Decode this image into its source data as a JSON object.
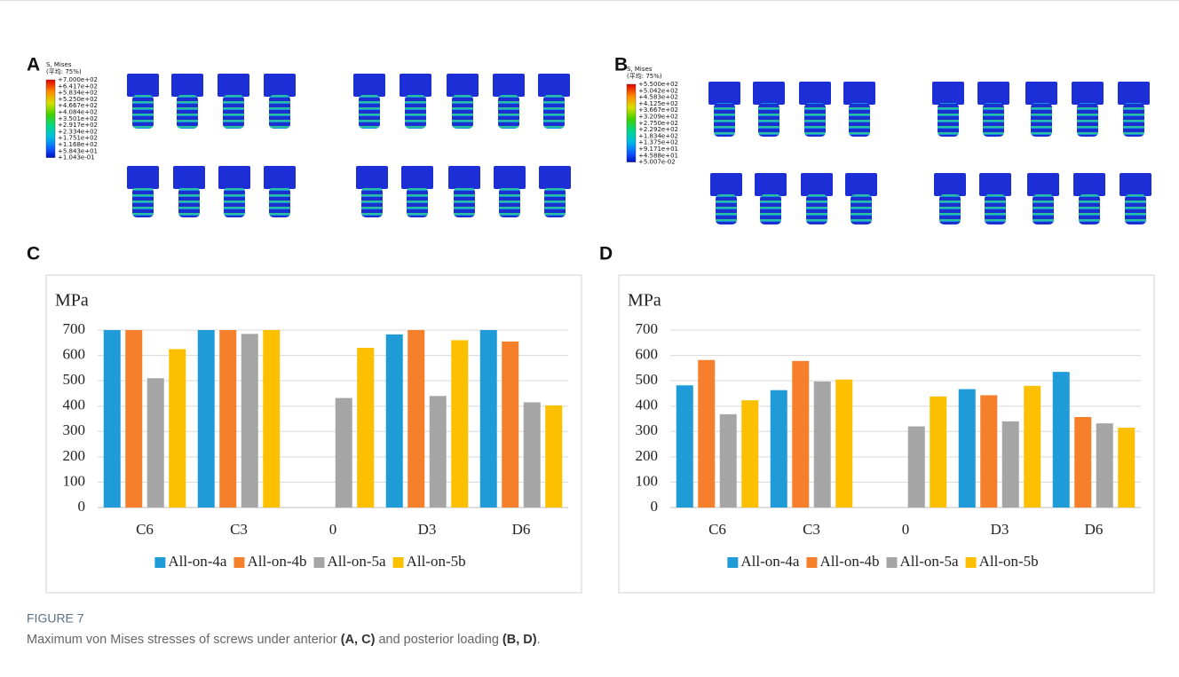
{
  "panels": [
    {
      "letter": "A",
      "colorbar": {
        "title": "S, Mises",
        "subtitle": "(平均: 75%)",
        "labels": [
          "+7.000e+02",
          "+6.417e+02",
          "+5.834e+02",
          "+5.250e+02",
          "+4.667e+02",
          "+4.084e+02",
          "+3.501e+02",
          "+2.917e+02",
          "+2.334e+02",
          "+1.751e+02",
          "+1.168e+02",
          "+5.843e+01",
          "+1.043e-01"
        ]
      }
    },
    {
      "letter": "B",
      "colorbar": {
        "title": "S, Mises",
        "subtitle": "(平均: 75%)",
        "labels": [
          "+5.500e+02",
          "+5.042e+02",
          "+4.583e+02",
          "+4.125e+02",
          "+3.667e+02",
          "+3.209e+02",
          "+2.750e+02",
          "+2.292e+02",
          "+1.834e+02",
          "+1.375e+02",
          "+9.171e+01",
          "+4.588e+01",
          "+5.007e-02"
        ]
      }
    }
  ],
  "chart_data": [
    {
      "type": "bar",
      "panel": "C",
      "y_label": "MPa",
      "categories": [
        "C6",
        "C3",
        "0",
        "D3",
        "D6"
      ],
      "series": [
        {
          "name": "All-on-4a",
          "color": "#1f9bd7",
          "values": [
            700,
            700,
            null,
            683,
            700
          ]
        },
        {
          "name": "All-on-4b",
          "color": "#f57f2a",
          "values": [
            700,
            700,
            null,
            700,
            655
          ]
        },
        {
          "name": "All-on-5a",
          "color": "#a5a5a5",
          "values": [
            510,
            685,
            432,
            440,
            415
          ]
        },
        {
          "name": "All-on-5b",
          "color": "#fcc000",
          "values": [
            625,
            700,
            630,
            660,
            403
          ]
        }
      ],
      "ylim": [
        0,
        700
      ],
      "yticks": [
        0,
        100,
        200,
        300,
        400,
        500,
        600,
        700
      ],
      "grid": true,
      "legend": "bottom"
    },
    {
      "type": "bar",
      "panel": "D",
      "y_label": "MPa",
      "categories": [
        "C6",
        "C3",
        "0",
        "D3",
        "D6"
      ],
      "series": [
        {
          "name": "All-on-4a",
          "color": "#1f9bd7",
          "values": [
            482,
            463,
            null,
            467,
            535
          ]
        },
        {
          "name": "All-on-4b",
          "color": "#f57f2a",
          "values": [
            582,
            578,
            null,
            443,
            357
          ]
        },
        {
          "name": "All-on-5a",
          "color": "#a5a5a5",
          "values": [
            368,
            497,
            320,
            340,
            332
          ]
        },
        {
          "name": "All-on-5b",
          "color": "#fcc000",
          "values": [
            423,
            505,
            438,
            480,
            315
          ]
        }
      ],
      "ylim": [
        0,
        700
      ],
      "yticks": [
        0,
        100,
        200,
        300,
        400,
        500,
        600,
        700
      ],
      "grid": true,
      "legend": "bottom"
    }
  ],
  "caption": {
    "label": "FIGURE 7",
    "text": [
      "Maximum von Mises stresses of screws under anterior ",
      "(A, C)",
      " and posterior loading ",
      "(B, D)",
      "."
    ]
  }
}
